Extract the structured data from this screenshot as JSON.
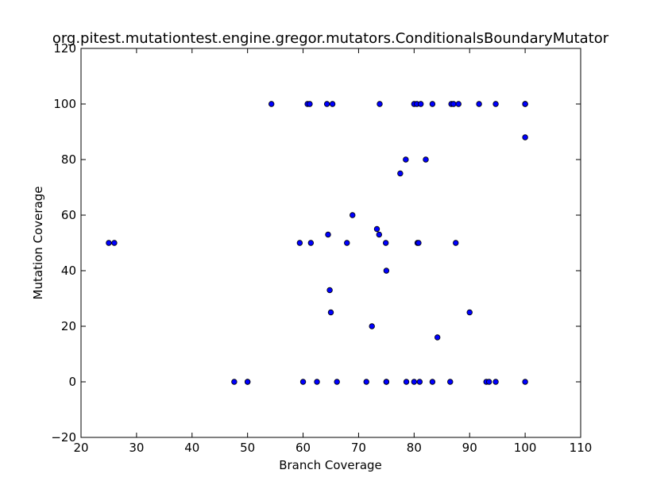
{
  "chart_data": {
    "type": "scatter",
    "title": "org.pitest.mutationtest.engine.gregor.mutators.ConditionalsBoundaryMutator",
    "xlabel": "Branch Coverage",
    "ylabel": "Mutation Coverage",
    "xlim": [
      20,
      110
    ],
    "ylim": [
      -20,
      120
    ],
    "xticks": [
      20,
      30,
      40,
      50,
      60,
      70,
      80,
      90,
      100,
      110
    ],
    "yticks": [
      -20,
      0,
      20,
      40,
      60,
      80,
      100,
      120
    ],
    "xtick_labels": [
      "20",
      "30",
      "40",
      "50",
      "60",
      "70",
      "80",
      "90",
      "100",
      "110"
    ],
    "ytick_labels": [
      "−20",
      "0",
      "20",
      "40",
      "60",
      "80",
      "100",
      "120"
    ],
    "grid": false,
    "marker_color": "#0000ff",
    "points": [
      {
        "x": 25.0,
        "y": 50
      },
      {
        "x": 26.0,
        "y": 50
      },
      {
        "x": 47.6,
        "y": 0
      },
      {
        "x": 50.0,
        "y": 0
      },
      {
        "x": 50.0,
        "y": 0
      },
      {
        "x": 54.3,
        "y": 100
      },
      {
        "x": 59.4,
        "y": 50
      },
      {
        "x": 60.0,
        "y": 0
      },
      {
        "x": 60.8,
        "y": 100
      },
      {
        "x": 61.2,
        "y": 100
      },
      {
        "x": 61.4,
        "y": 50
      },
      {
        "x": 62.5,
        "y": 0
      },
      {
        "x": 64.3,
        "y": 100
      },
      {
        "x": 64.5,
        "y": 53
      },
      {
        "x": 64.8,
        "y": 33
      },
      {
        "x": 65.0,
        "y": 25
      },
      {
        "x": 65.3,
        "y": 100
      },
      {
        "x": 66.1,
        "y": 0
      },
      {
        "x": 67.9,
        "y": 50
      },
      {
        "x": 68.9,
        "y": 60
      },
      {
        "x": 71.4,
        "y": 0
      },
      {
        "x": 72.4,
        "y": 20
      },
      {
        "x": 73.3,
        "y": 55
      },
      {
        "x": 73.7,
        "y": 53
      },
      {
        "x": 73.8,
        "y": 100
      },
      {
        "x": 74.9,
        "y": 50
      },
      {
        "x": 75.0,
        "y": 40
      },
      {
        "x": 75.0,
        "y": 0
      },
      {
        "x": 75.0,
        "y": 0
      },
      {
        "x": 77.5,
        "y": 75
      },
      {
        "x": 78.5,
        "y": 80
      },
      {
        "x": 78.6,
        "y": 0
      },
      {
        "x": 80.0,
        "y": 100
      },
      {
        "x": 80.0,
        "y": 0
      },
      {
        "x": 80.5,
        "y": 100
      },
      {
        "x": 80.6,
        "y": 50
      },
      {
        "x": 80.8,
        "y": 50
      },
      {
        "x": 81.0,
        "y": 0
      },
      {
        "x": 81.2,
        "y": 100
      },
      {
        "x": 82.1,
        "y": 80
      },
      {
        "x": 83.3,
        "y": 100
      },
      {
        "x": 83.3,
        "y": 0
      },
      {
        "x": 84.2,
        "y": 16
      },
      {
        "x": 86.5,
        "y": 0
      },
      {
        "x": 86.7,
        "y": 100
      },
      {
        "x": 87.1,
        "y": 100
      },
      {
        "x": 87.5,
        "y": 50
      },
      {
        "x": 88.0,
        "y": 100
      },
      {
        "x": 90.0,
        "y": 25
      },
      {
        "x": 91.7,
        "y": 100
      },
      {
        "x": 93.0,
        "y": 0
      },
      {
        "x": 93.5,
        "y": 0
      },
      {
        "x": 94.7,
        "y": 100
      },
      {
        "x": 94.7,
        "y": 0
      },
      {
        "x": 100.0,
        "y": 100
      },
      {
        "x": 100.0,
        "y": 100
      },
      {
        "x": 100.0,
        "y": 88
      },
      {
        "x": 100.0,
        "y": 0
      }
    ]
  }
}
